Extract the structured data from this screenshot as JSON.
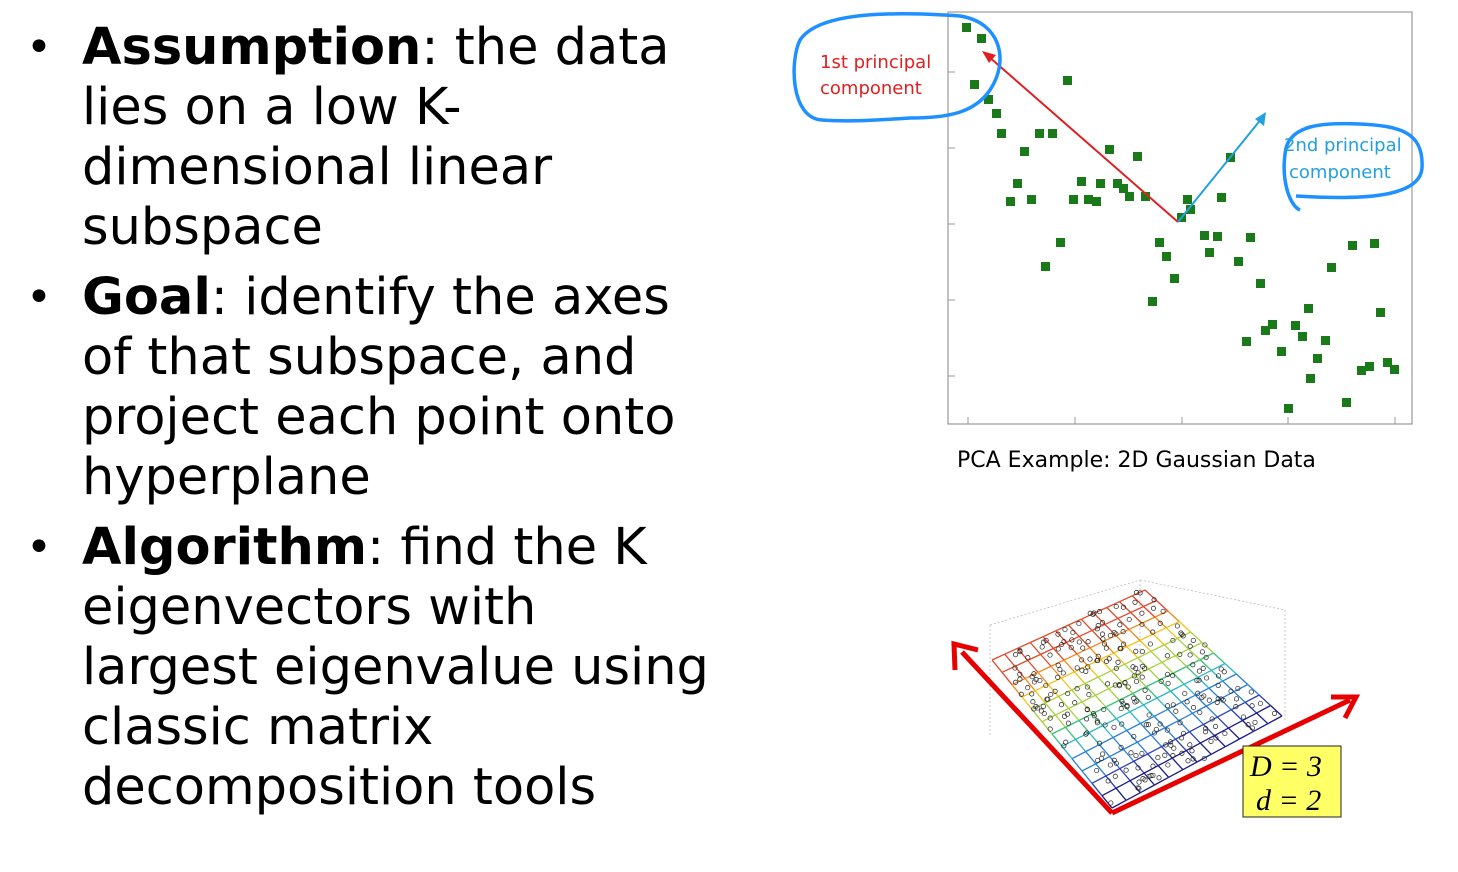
{
  "bullets": [
    {
      "term": "Assumption",
      "text": ": the data lies on a low K-dimensional linear subspace"
    },
    {
      "term": "Goal",
      "text": ": identify the axes of that subspace, and project each point onto hyperplane"
    },
    {
      "term": "Algorithm",
      "text": ": find the K eigenvectors with largest eigenvalue using classic matrix decomposition tools"
    }
  ],
  "scatter": {
    "caption": "PCA Example: 2D Gaussian Data",
    "annotation_1": [
      "1st principal",
      "component"
    ],
    "annotation_2": [
      "2nd principal",
      "component"
    ],
    "colors": {
      "points": "#1a7a1a",
      "pc1": "#e02020",
      "pc2": "#22a0e0",
      "circle": "#1e90ff"
    }
  },
  "plane_figure": {
    "label_D": "D = 3",
    "label_d": "d = 2"
  }
}
